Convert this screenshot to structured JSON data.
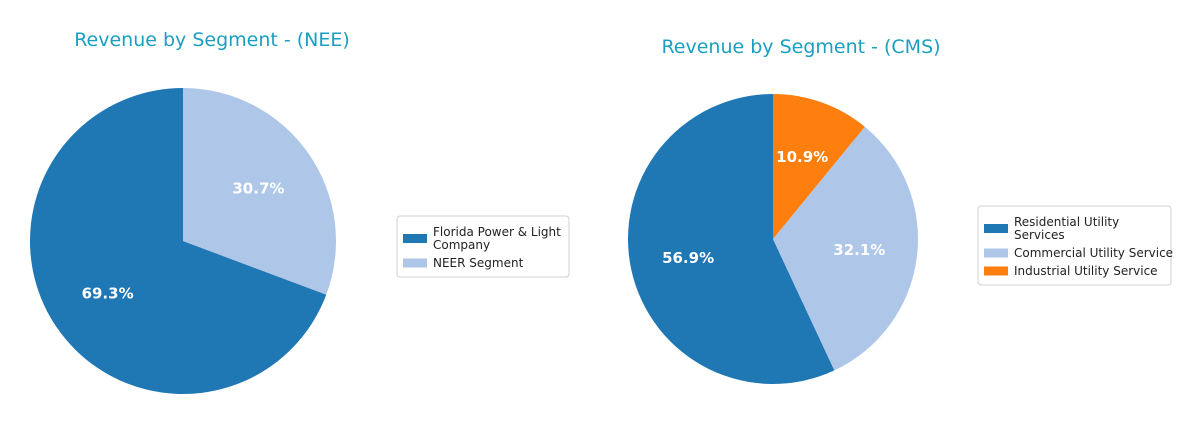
{
  "chart_data": [
    {
      "type": "pie",
      "title": "Revenue by Segment - (NEE)",
      "legend_position": "right",
      "slices": [
        {
          "label": [
            "Florida Power & Light",
            "Company"
          ],
          "value": 69.3,
          "pct_label": "69.3%",
          "color": "#1f77b4"
        },
        {
          "label": [
            "NEER Segment"
          ],
          "value": 30.7,
          "pct_label": "30.7%",
          "color": "#aec7e8"
        }
      ]
    },
    {
      "type": "pie",
      "title": "Revenue by Segment - (CMS)",
      "legend_position": "right",
      "slices": [
        {
          "label": [
            "Residential Utility",
            "Services"
          ],
          "value": 56.9,
          "pct_label": "56.9%",
          "color": "#1f77b4"
        },
        {
          "label": [
            "Commercial Utility Service"
          ],
          "value": 32.1,
          "pct_label": "32.1%",
          "color": "#aec7e8"
        },
        {
          "label": [
            "Industrial Utility Service"
          ],
          "value": 10.9,
          "pct_label": "10.9%",
          "color": "#ff7f0e"
        }
      ]
    }
  ]
}
